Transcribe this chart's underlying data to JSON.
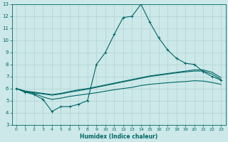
{
  "xlabel": "Humidex (Indice chaleur)",
  "xlim": [
    -0.5,
    23.5
  ],
  "ylim": [
    3,
    13
  ],
  "xticks": [
    0,
    1,
    2,
    3,
    4,
    5,
    6,
    7,
    8,
    9,
    10,
    11,
    12,
    13,
    14,
    15,
    16,
    17,
    18,
    19,
    20,
    21,
    22,
    23
  ],
  "yticks": [
    3,
    4,
    5,
    6,
    7,
    8,
    9,
    10,
    11,
    12,
    13
  ],
  "bg_color": "#cce8e8",
  "line_color": "#006666",
  "grid_color": "#aacccc",
  "line1_x": [
    0,
    1,
    2,
    3,
    4,
    5,
    6,
    7,
    8,
    9,
    10,
    11,
    12,
    13,
    14,
    15,
    16,
    17,
    18,
    19,
    20,
    21,
    22,
    23
  ],
  "line1_y": [
    6.0,
    5.7,
    5.5,
    5.1,
    4.1,
    4.5,
    4.5,
    4.7,
    5.0,
    8.0,
    9.0,
    10.5,
    11.9,
    12.0,
    13.0,
    11.5,
    10.2,
    9.2,
    8.5,
    8.1,
    8.0,
    7.4,
    7.0,
    6.7
  ],
  "line2_x": [
    0,
    1,
    2,
    3,
    4,
    5,
    6,
    7,
    8,
    9,
    10,
    11,
    12,
    13,
    14,
    15,
    16,
    17,
    18,
    19,
    20,
    21,
    22,
    23
  ],
  "line2_y": [
    6.0,
    5.8,
    5.7,
    5.6,
    5.5,
    5.6,
    5.75,
    5.9,
    6.0,
    6.15,
    6.3,
    6.45,
    6.6,
    6.75,
    6.9,
    7.05,
    7.15,
    7.25,
    7.35,
    7.45,
    7.55,
    7.55,
    7.35,
    6.9
  ],
  "line3_x": [
    0,
    1,
    2,
    3,
    4,
    5,
    6,
    7,
    8,
    9,
    10,
    11,
    12,
    13,
    14,
    15,
    16,
    17,
    18,
    19,
    20,
    21,
    22,
    23
  ],
  "line3_y": [
    6.0,
    5.75,
    5.65,
    5.55,
    5.45,
    5.55,
    5.7,
    5.82,
    5.95,
    6.1,
    6.25,
    6.4,
    6.55,
    6.7,
    6.85,
    7.0,
    7.1,
    7.2,
    7.3,
    7.38,
    7.45,
    7.45,
    7.2,
    6.75
  ],
  "line4_x": [
    0,
    1,
    2,
    3,
    4,
    5,
    6,
    7,
    8,
    9,
    10,
    11,
    12,
    13,
    14,
    15,
    16,
    17,
    18,
    19,
    20,
    21,
    22,
    23
  ],
  "line4_y": [
    6.0,
    5.7,
    5.6,
    5.3,
    5.1,
    5.2,
    5.35,
    5.45,
    5.55,
    5.65,
    5.78,
    5.9,
    6.0,
    6.1,
    6.25,
    6.35,
    6.42,
    6.48,
    6.54,
    6.58,
    6.65,
    6.62,
    6.5,
    6.35
  ]
}
